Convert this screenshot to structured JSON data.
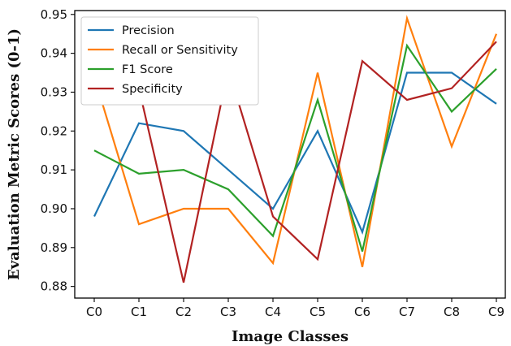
{
  "chart_data": {
    "type": "line",
    "xlabel": "Image Classes",
    "ylabel": "Evaluation Metric Scores (0-1)",
    "categories": [
      "C0",
      "C1",
      "C2",
      "C3",
      "C4",
      "C5",
      "C6",
      "C7",
      "C8",
      "C9"
    ],
    "ylim": [
      0.877,
      0.951
    ],
    "yticks": [
      "0.88",
      "0.89",
      "0.90",
      "0.91",
      "0.92",
      "0.93",
      "0.94",
      "0.95"
    ],
    "grid": false,
    "legend_position": "top-left",
    "series": [
      {
        "name": "Precision",
        "color": "#1f77b4",
        "values": [
          0.898,
          0.922,
          0.92,
          0.91,
          0.9,
          0.92,
          0.894,
          0.935,
          0.935,
          0.927
        ]
      },
      {
        "name": "Recall or Sensitivity",
        "color": "#ff7f0e",
        "values": [
          0.934,
          0.896,
          0.9,
          0.9,
          0.886,
          0.935,
          0.885,
          0.949,
          0.916,
          0.945
        ]
      },
      {
        "name": "F1 Score",
        "color": "#2ca02c",
        "values": [
          0.915,
          0.909,
          0.91,
          0.905,
          0.893,
          0.928,
          0.889,
          0.942,
          0.925,
          0.936
        ]
      },
      {
        "name": "Specificity",
        "color": "#b22222",
        "values": [
          0.927,
          0.931,
          0.881,
          0.936,
          0.898,
          0.887,
          0.938,
          0.928,
          0.931,
          0.943
        ]
      }
    ]
  }
}
